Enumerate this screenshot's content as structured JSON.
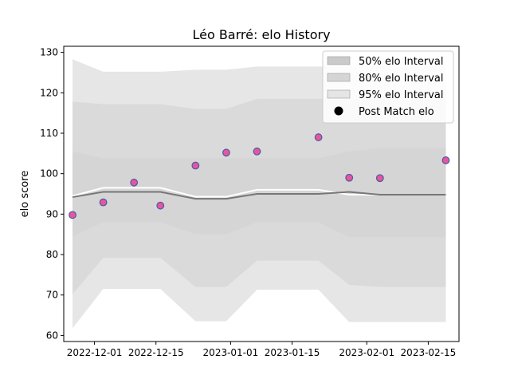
{
  "chart_data": {
    "type": "line",
    "title": "Léo Barré: elo History",
    "xlabel": "",
    "ylabel": "elo score",
    "xlim": [
      "2022-11-24",
      "2023-02-22"
    ],
    "ylim": [
      58.5,
      131.5
    ],
    "x_ticks": [
      {
        "date": "2022-12-01",
        "label": "2022-12-01"
      },
      {
        "date": "2022-12-15",
        "label": "2022-12-15"
      },
      {
        "date": "2023-01-01",
        "label": "2023-01-01"
      },
      {
        "date": "2023-01-15",
        "label": "2023-01-15"
      },
      {
        "date": "2023-02-01",
        "label": "2023-02-01"
      },
      {
        "date": "2023-02-15",
        "label": "2023-02-15"
      }
    ],
    "y_ticks": [
      60,
      70,
      80,
      90,
      100,
      110,
      120,
      130
    ],
    "grid": false,
    "legend_position": "top-right",
    "x": [
      "2022-11-26",
      "2022-12-03",
      "2022-12-10",
      "2022-12-16",
      "2022-12-24",
      "2022-12-31",
      "2023-01-07",
      "2023-01-21",
      "2023-01-28",
      "2023-02-04",
      "2023-02-19"
    ],
    "series": [
      {
        "name": "50% elo Interval",
        "kind": "band",
        "color": "#b4b4b4",
        "opacity": 0.7,
        "lower": [
          84.5,
          88.0,
          88.0,
          88.0,
          85.0,
          85.0,
          88.0,
          88.0,
          84.3,
          84.3,
          84.3
        ],
        "upper": [
          105.5,
          103.8,
          103.8,
          103.8,
          103.8,
          103.8,
          103.8,
          103.8,
          105.5,
          106.3,
          106.3
        ]
      },
      {
        "name": "80% elo Interval",
        "kind": "band",
        "color": "#c4c4c4",
        "opacity": 0.7,
        "lower": [
          70.2,
          79.2,
          79.2,
          79.2,
          72.0,
          72.0,
          78.5,
          78.5,
          72.5,
          72.0,
          72.0
        ],
        "upper": [
          117.8,
          117.2,
          117.2,
          117.2,
          116.0,
          116.0,
          118.5,
          118.5,
          118.5,
          118.5,
          118.5
        ]
      },
      {
        "name": "95% elo Interval",
        "kind": "band",
        "color": "#dcdcdc",
        "opacity": 0.7,
        "lower": [
          61.8,
          71.5,
          71.5,
          71.5,
          63.5,
          63.5,
          71.3,
          71.3,
          63.3,
          63.3,
          63.3
        ],
        "upper": [
          128.3,
          125.2,
          125.2,
          125.2,
          125.7,
          125.7,
          126.5,
          126.5,
          126.5,
          126.5,
          126.5
        ]
      },
      {
        "name": "",
        "kind": "line",
        "color": "#ffffff",
        "values": [
          94.5,
          96.5,
          96.5,
          96.5,
          94.3,
          94.3,
          96.0,
          96.0,
          94.8,
          94.8,
          94.8
        ]
      },
      {
        "name": "",
        "kind": "line",
        "color": "#777777",
        "values": [
          94.2,
          95.5,
          95.5,
          95.5,
          93.8,
          93.8,
          95.0,
          95.0,
          95.5,
          94.8,
          94.8
        ]
      },
      {
        "name": "Post Match elo",
        "kind": "scatter",
        "color": "#e8559a",
        "edge": "#4a5aa8",
        "values": [
          89.8,
          92.9,
          97.8,
          92.1,
          102.0,
          105.2,
          105.5,
          109.0,
          99.0,
          98.9,
          103.3
        ]
      }
    ]
  }
}
